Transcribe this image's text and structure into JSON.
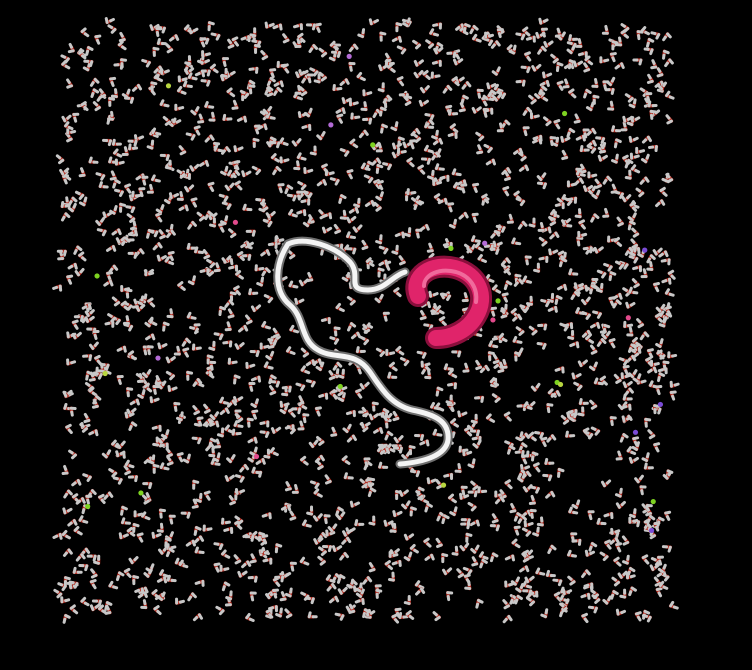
{
  "scene": {
    "background": "#000000",
    "water_oxygen_color": "#b22a1e",
    "water_hydrogen_color": "#c8c8c8",
    "ion_colors": [
      "#7ed321",
      "#7ed321",
      "#b36bd6",
      "#7a4bd6",
      "#b8d640",
      "#e24a8c"
    ],
    "coil_color": "#ffffff",
    "helix_color": "#e0246a"
  }
}
